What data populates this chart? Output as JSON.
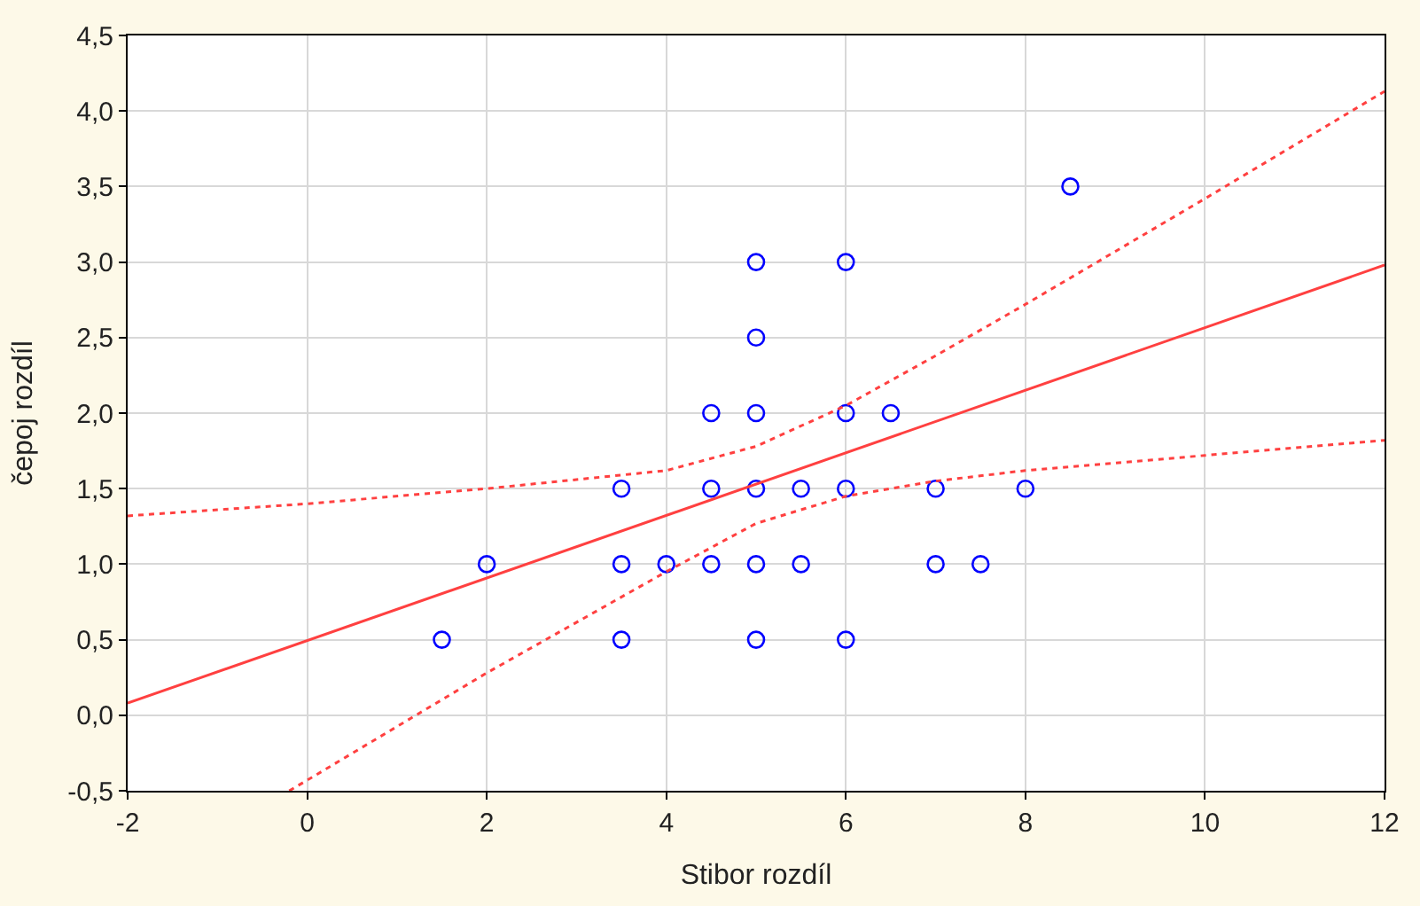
{
  "chart_data": {
    "type": "scatter",
    "xlabel": "Stibor rozdíl",
    "ylabel": "čepoj rozdíl",
    "xlim": [
      -2,
      12
    ],
    "ylim": [
      -0.5,
      4.5
    ],
    "xticks": [
      -2,
      0,
      2,
      4,
      6,
      8,
      10,
      12
    ],
    "yticks": [
      {
        "value": -0.5,
        "label": "-0,5"
      },
      {
        "value": 0,
        "label": "0,0"
      },
      {
        "value": 0.5,
        "label": "0,5"
      },
      {
        "value": 1,
        "label": "1,0"
      },
      {
        "value": 1.5,
        "label": "1,5"
      },
      {
        "value": 2,
        "label": "2,0"
      },
      {
        "value": 2.5,
        "label": "2,5"
      },
      {
        "value": 3,
        "label": "3,0"
      },
      {
        "value": 3.5,
        "label": "3,5"
      },
      {
        "value": 4,
        "label": "4,0"
      },
      {
        "value": 4.5,
        "label": "4,5"
      }
    ],
    "grid": true,
    "series": [
      {
        "color": "#0000ff",
        "marker": "circle",
        "x": [
          1.5,
          2,
          3.5,
          3.5,
          3.5,
          4,
          4.5,
          4.5,
          4.5,
          5,
          5,
          5,
          5,
          5,
          5,
          5.5,
          5.5,
          6,
          6,
          6,
          6,
          6.5,
          7,
          7,
          7.5,
          8,
          8.5
        ],
        "values": [
          0.5,
          1,
          1.5,
          1,
          0.5,
          1,
          2,
          1.5,
          1,
          3,
          2.5,
          2,
          1.5,
          1,
          0.5,
          1.5,
          1,
          3,
          2,
          1.5,
          0.5,
          2,
          1.5,
          1,
          1,
          1.5,
          3.5
        ]
      },
      {
        "type": "line",
        "color": "#ff4040",
        "line_style": "solid",
        "x": [
          -2,
          12
        ],
        "values": [
          0.08,
          2.98
        ]
      },
      {
        "type": "line",
        "color": "#ff4040",
        "line_style": "dotted",
        "x": [
          -2,
          0,
          2,
          4,
          5,
          6,
          7,
          8,
          10,
          12
        ],
        "values": [
          1.32,
          1.4,
          1.5,
          1.62,
          1.78,
          2.05,
          2.38,
          2.72,
          3.42,
          4.13
        ]
      },
      {
        "type": "line",
        "color": "#ff4040",
        "line_style": "dotted",
        "x": [
          -0.2,
          0,
          2,
          4,
          5,
          6,
          7,
          8,
          10,
          12
        ],
        "values": [
          -0.5,
          -0.43,
          0.28,
          0.95,
          1.27,
          1.45,
          1.55,
          1.62,
          1.72,
          1.82
        ]
      }
    ]
  }
}
